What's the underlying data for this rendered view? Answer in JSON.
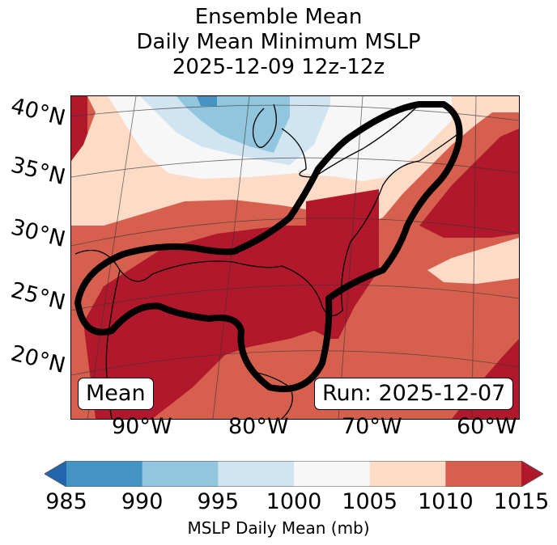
{
  "title": {
    "line1": "Ensemble Mean",
    "line2": "Daily Mean Minimum MSLP",
    "line3": "2025-12-09 12z-12z"
  },
  "map": {
    "latitude_labels": [
      "40°N",
      "35°N",
      "30°N",
      "25°N",
      "20°N"
    ],
    "longitude_labels": [
      "90°W",
      "80°W",
      "70°W",
      "60°W"
    ],
    "mean_label": "Mean",
    "run_label": "Run: 2025-12-07",
    "region": "Eastern United States, Gulf of Mexico, Western Atlantic",
    "contour_outline": "Thick black outline enclosing Gulf Coast, Florida and US East Coast to Nova Scotia",
    "shading_colors": {
      "lt985": "#2166ac",
      "985-990": "#4393c3",
      "990-995": "#92c5de",
      "995-1000": "#d1e5f0",
      "1000-1005": "#f7f7f7",
      "1005-1010": "#fddbc7",
      "1010-1015": "#d6604d",
      "gt1015": "#b2182b"
    }
  },
  "colorbar": {
    "label": "MSLP Daily Mean (mb)",
    "ticks": [
      "985",
      "990",
      "995",
      "1000",
      "1005",
      "1010",
      "1015"
    ],
    "levels": [
      985,
      990,
      995,
      1000,
      1005,
      1010,
      1015
    ],
    "colors": [
      "#4393c3",
      "#92c5de",
      "#d1e5f0",
      "#f7f7f7",
      "#fddbc7",
      "#d6604d"
    ],
    "under_color": "#2166ac",
    "over_color": "#b2182b",
    "extend": "both"
  }
}
